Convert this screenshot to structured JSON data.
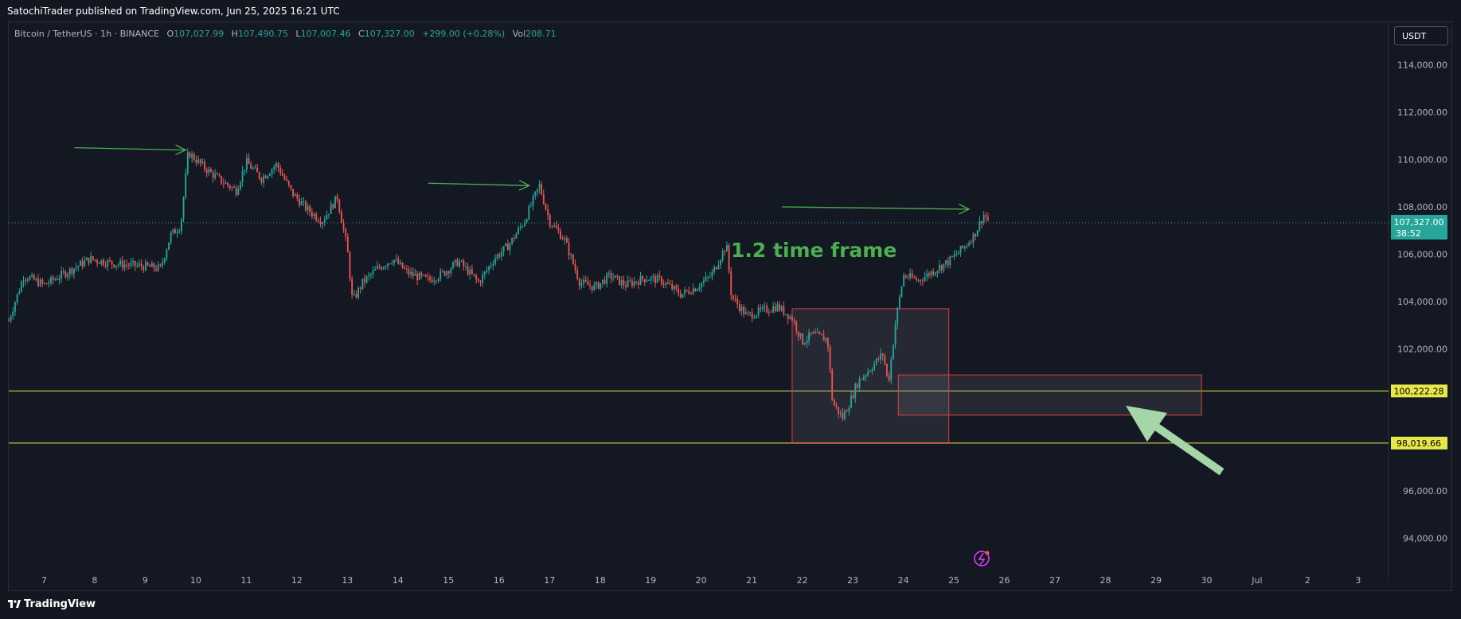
{
  "header": {
    "publisher": "SatochiTrader published on TradingView.com, Jun 25, 2025 16:21 UTC"
  },
  "legend": {
    "symbol": "Bitcoin / TetherUS · 1h · BINANCE",
    "open_label": "O",
    "open": "107,027.99",
    "high_label": "H",
    "high": "107,490.75",
    "low_label": "L",
    "low": "107,007.46",
    "close_label": "C",
    "close": "107,327.00",
    "change": "+299.00 (+0.28%)",
    "vol_label": "Vol",
    "vol": "208.71"
  },
  "currency_button": "USDT",
  "footer": {
    "brand": "TradingView"
  },
  "colors": {
    "up": "#26a69a",
    "down": "#ef5350",
    "level": "#e8e64a",
    "arrow": "#4caf50",
    "big_arrow": "#a5d6a7",
    "zone": "#e04040"
  },
  "chart_data": {
    "type": "candlestick",
    "title": "",
    "annotation": "1.2 time frame",
    "x_ticks": [
      "7",
      "8",
      "9",
      "10",
      "11",
      "12",
      "13",
      "14",
      "15",
      "16",
      "17",
      "18",
      "19",
      "20",
      "21",
      "22",
      "23",
      "24",
      "25",
      "26",
      "27",
      "28",
      "29",
      "30",
      "Jul",
      "2",
      "3"
    ],
    "y_ticks": [
      "114,000.00",
      "112,000.00",
      "110,000.00",
      "108,000.00",
      "106,000.00",
      "104,000.00",
      "102,000.00",
      "96,000.00",
      "94,000.00"
    ],
    "ylim": [
      92300,
      115800
    ],
    "xlim": [
      6.3,
      33.6
    ],
    "levels": [
      {
        "price": 100222.28,
        "label": "100,222.28"
      },
      {
        "price": 98019.66,
        "label": "98,019.66"
      }
    ],
    "last_price": {
      "price": 107327.0,
      "label": "107,327.00",
      "countdown": "38:52"
    },
    "path": [
      [
        6.3,
        103200
      ],
      [
        6.6,
        105100
      ],
      [
        7.0,
        104700
      ],
      [
        7.5,
        105300
      ],
      [
        7.9,
        105800
      ],
      [
        8.4,
        105600
      ],
      [
        8.9,
        105500
      ],
      [
        9.3,
        105400
      ],
      [
        9.5,
        106800
      ],
      [
        9.7,
        107200
      ],
      [
        9.85,
        110300
      ],
      [
        10.2,
        109600
      ],
      [
        10.5,
        109100
      ],
      [
        10.8,
        108700
      ],
      [
        11.0,
        109900
      ],
      [
        11.3,
        109200
      ],
      [
        11.6,
        109800
      ],
      [
        11.9,
        108600
      ],
      [
        12.2,
        107900
      ],
      [
        12.5,
        107400
      ],
      [
        12.8,
        108400
      ],
      [
        13.0,
        106200
      ],
      [
        13.1,
        104000
      ],
      [
        13.3,
        104800
      ],
      [
        13.6,
        105400
      ],
      [
        13.9,
        105800
      ],
      [
        14.2,
        105200
      ],
      [
        14.6,
        104900
      ],
      [
        14.9,
        105200
      ],
      [
        15.2,
        105700
      ],
      [
        15.6,
        104800
      ],
      [
        15.9,
        105800
      ],
      [
        16.2,
        106400
      ],
      [
        16.5,
        107400
      ],
      [
        16.8,
        108900
      ],
      [
        17.0,
        107400
      ],
      [
        17.3,
        106600
      ],
      [
        17.6,
        104800
      ],
      [
        17.9,
        104600
      ],
      [
        18.2,
        105100
      ],
      [
        18.5,
        104700
      ],
      [
        18.9,
        105000
      ],
      [
        19.2,
        104900
      ],
      [
        19.6,
        104300
      ],
      [
        19.9,
        104600
      ],
      [
        20.2,
        105100
      ],
      [
        20.5,
        106400
      ],
      [
        20.6,
        104200
      ],
      [
        20.9,
        103400
      ],
      [
        21.2,
        103600
      ],
      [
        21.5,
        103800
      ],
      [
        21.8,
        103300
      ],
      [
        22.0,
        102300
      ],
      [
        22.2,
        102600
      ],
      [
        22.5,
        102400
      ],
      [
        22.6,
        99700
      ],
      [
        22.8,
        99100
      ],
      [
        22.95,
        99800
      ],
      [
        23.1,
        100600
      ],
      [
        23.4,
        101300
      ],
      [
        23.6,
        101800
      ],
      [
        23.7,
        100500
      ],
      [
        23.85,
        103200
      ],
      [
        24.0,
        105100
      ],
      [
        24.3,
        104900
      ],
      [
        24.6,
        105300
      ],
      [
        24.9,
        105700
      ],
      [
        25.2,
        106300
      ],
      [
        25.4,
        106800
      ],
      [
        25.6,
        107700
      ],
      [
        25.7,
        107330
      ]
    ],
    "boxes": [
      {
        "x0": 21.8,
        "x1": 24.9,
        "y0": 98000,
        "y1": 103700
      },
      {
        "x0": 23.9,
        "x1": 29.9,
        "y0": 99200,
        "y1": 100900
      }
    ],
    "arrows": [
      {
        "x0": 7.6,
        "y0": 110500,
        "x1": 9.8,
        "y1": 110400
      },
      {
        "x0": 14.6,
        "y0": 109000,
        "x1": 16.6,
        "y1": 108900
      },
      {
        "x0": 21.6,
        "y0": 108000,
        "x1": 25.3,
        "y1": 107900
      }
    ],
    "big_arrow": {
      "x0": 30.3,
      "y0": 96800,
      "x1": 28.4,
      "y1": 99600
    }
  }
}
